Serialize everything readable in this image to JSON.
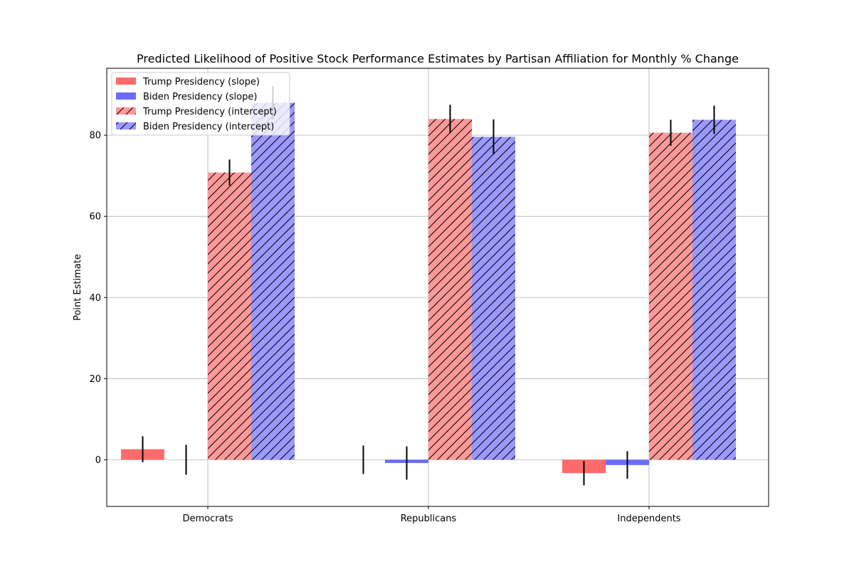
{
  "chart_data": {
    "type": "bar",
    "title": "Predicted Likelihood of Positive Stock Performance Estimates by Partisan Affiliation for Monthly % Change",
    "xlabel": "",
    "ylabel": "Point Estimate",
    "categories": [
      "Democrats",
      "Republicans",
      "Independents"
    ],
    "ylim": [
      -11.5,
      96.5
    ],
    "yticks": [
      0,
      20,
      40,
      60,
      80
    ],
    "grid": true,
    "legend_position": "upper-left",
    "series": [
      {
        "name": "Trump Presidency (slope)",
        "color": "#ff6b6b",
        "hatch": false,
        "values": [
          2.6,
          0.0,
          -3.3
        ],
        "errors": [
          3.2,
          3.5,
          3.0
        ]
      },
      {
        "name": "Biden Presidency (slope)",
        "color": "#6b6bff",
        "hatch": false,
        "values": [
          0.0,
          -0.8,
          -1.3
        ],
        "errors": [
          3.7,
          4.1,
          3.4
        ]
      },
      {
        "name": "Trump Presidency (intercept)",
        "color": "#ff9999",
        "hatch": true,
        "values": [
          70.8,
          84.0,
          80.6
        ],
        "errors": [
          3.2,
          3.5,
          3.2
        ]
      },
      {
        "name": "Biden Presidency (intercept)",
        "color": "#9999ff",
        "hatch": true,
        "values": [
          88.0,
          79.6,
          83.8
        ],
        "errors": [
          4.1,
          4.3,
          3.5
        ]
      }
    ]
  }
}
